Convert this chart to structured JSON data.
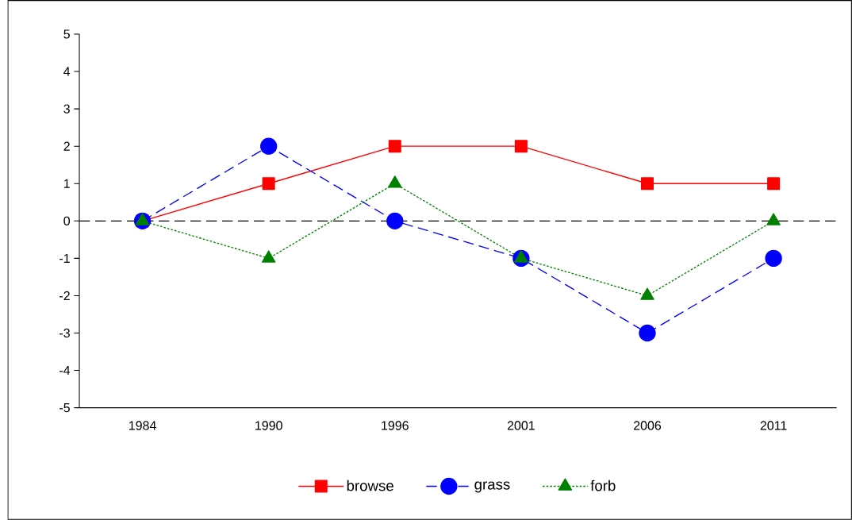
{
  "chart_data": {
    "type": "line",
    "categories": [
      "1984",
      "1990",
      "1996",
      "2001",
      "2006",
      "2011"
    ],
    "series": [
      {
        "name": "browse",
        "color": "#ff0000",
        "marker": "square",
        "line_style": "solid",
        "values": [
          0,
          1,
          2,
          2,
          1,
          1
        ]
      },
      {
        "name": "grass",
        "color": "#0000ff",
        "marker": "circle",
        "line_style": "dashed",
        "values": [
          0,
          2,
          0,
          -1,
          -3,
          -1
        ]
      },
      {
        "name": "forb",
        "color": "#008000",
        "marker": "triangle",
        "line_style": "dotted",
        "values": [
          0,
          -1,
          1,
          -1,
          -2,
          0
        ]
      }
    ],
    "ylim": [
      -5,
      5
    ],
    "yticks": [
      -5,
      -4,
      -3,
      -2,
      -1,
      0,
      1,
      2,
      3,
      4,
      5
    ],
    "ref_lines": [
      {
        "axis": "y",
        "value": 0,
        "color": "#000000",
        "line_style": "dashed"
      }
    ],
    "grid": false,
    "legend": "bottom"
  }
}
